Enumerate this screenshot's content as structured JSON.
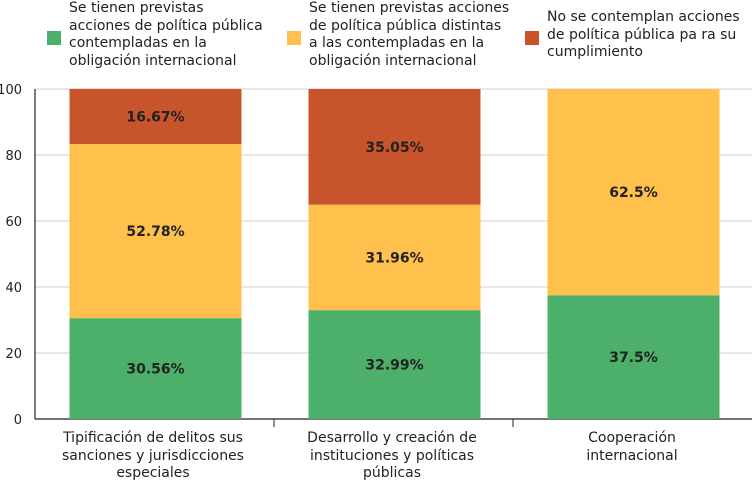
{
  "chart_data": {
    "type": "bar",
    "stacked": true,
    "categories": [
      "Tipificación de delitos sus\nsanciones y jurisdicciones\nespeciales",
      "Desarrollo y creación de\ninstituciones y políticas\npúblicas",
      "Cooperación\ninternacional"
    ],
    "series": [
      {
        "name": "Se tienen previstas\nacciones de política pública\ncontempladas en la\nobligación internacional",
        "color": "#4CAF6A",
        "values": [
          30.56,
          32.99,
          37.5
        ],
        "labels": [
          "30.56%",
          "32.99%",
          "37.5%"
        ]
      },
      {
        "name": "Se tienen previstas acciones\nde política pública distintas\na las contempladas en la\nobligación internacional",
        "color": "#FFC04C",
        "values": [
          52.78,
          31.96,
          62.5
        ],
        "labels": [
          "52.78%",
          "31.96%",
          "62.5%"
        ]
      },
      {
        "name": "No se contemplan acciones\nde política pública pa ra su\ncumplimiento",
        "color": "#C8542C",
        "values": [
          16.67,
          35.05,
          0
        ],
        "labels": [
          "16.67%",
          "35.05%",
          ""
        ]
      }
    ],
    "ylim": [
      0,
      100
    ],
    "yticks": [
      "0",
      "20",
      "40",
      "60",
      "80",
      "100"
    ],
    "grid": true,
    "legend_position": "top"
  }
}
